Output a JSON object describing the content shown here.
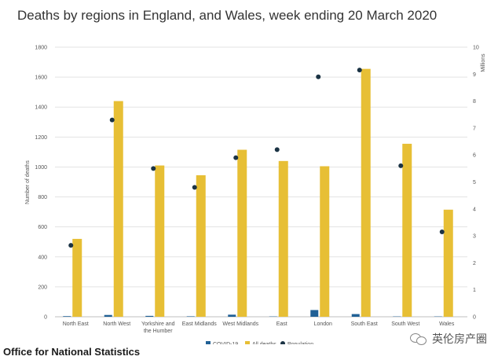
{
  "title": "Deaths by regions in England, and Wales, week ending 20 March 2020",
  "source": "Office for National Statistics",
  "watermark": "英伦房产圈",
  "colors": {
    "covid": "#206095",
    "all_deaths": "#e7bf35",
    "population": "#1b3344",
    "grid": "#e3e3e3",
    "axis_text": "#555555"
  },
  "chart_data": {
    "type": "bar",
    "title": "Deaths by regions in England, and Wales, week ending 20 March 2020",
    "ylabel": "Number of deaths",
    "y2label": "Millions",
    "ylim": [
      0,
      1800
    ],
    "y2lim": [
      0,
      10
    ],
    "yticks": [
      0,
      200,
      400,
      600,
      800,
      1000,
      1200,
      1400,
      1600,
      1800
    ],
    "y2ticks": [
      0,
      1,
      2,
      3,
      4,
      5,
      6,
      7,
      8,
      9,
      10
    ],
    "grid": true,
    "legend_position": "bottom",
    "categories": [
      "North East",
      "North West",
      "Yorkshire and the Humber",
      "East Midlands",
      "West Midlands",
      "East",
      "London",
      "South East",
      "South West",
      "Wales"
    ],
    "category_lines": [
      [
        "North East"
      ],
      [
        "North West"
      ],
      [
        "Yorkshire and",
        "the Humber"
      ],
      [
        "East Midlands"
      ],
      [
        "West Midlands"
      ],
      [
        "East"
      ],
      [
        "London"
      ],
      [
        "South East"
      ],
      [
        "South West"
      ],
      [
        "Wales"
      ]
    ],
    "series": [
      {
        "name": "COVID-19",
        "type": "bar",
        "axis": "left",
        "values": [
          4,
          12,
          6,
          3,
          14,
          2,
          45,
          18,
          2,
          2
        ]
      },
      {
        "name": "All deaths",
        "type": "bar",
        "axis": "left",
        "values": [
          520,
          1440,
          1010,
          945,
          1115,
          1040,
          1005,
          1655,
          1155,
          715
        ]
      },
      {
        "name": "Population",
        "type": "scatter",
        "axis": "right",
        "values": [
          2.65,
          7.3,
          5.5,
          4.8,
          5.9,
          6.2,
          8.9,
          9.15,
          5.6,
          3.15
        ]
      }
    ]
  }
}
